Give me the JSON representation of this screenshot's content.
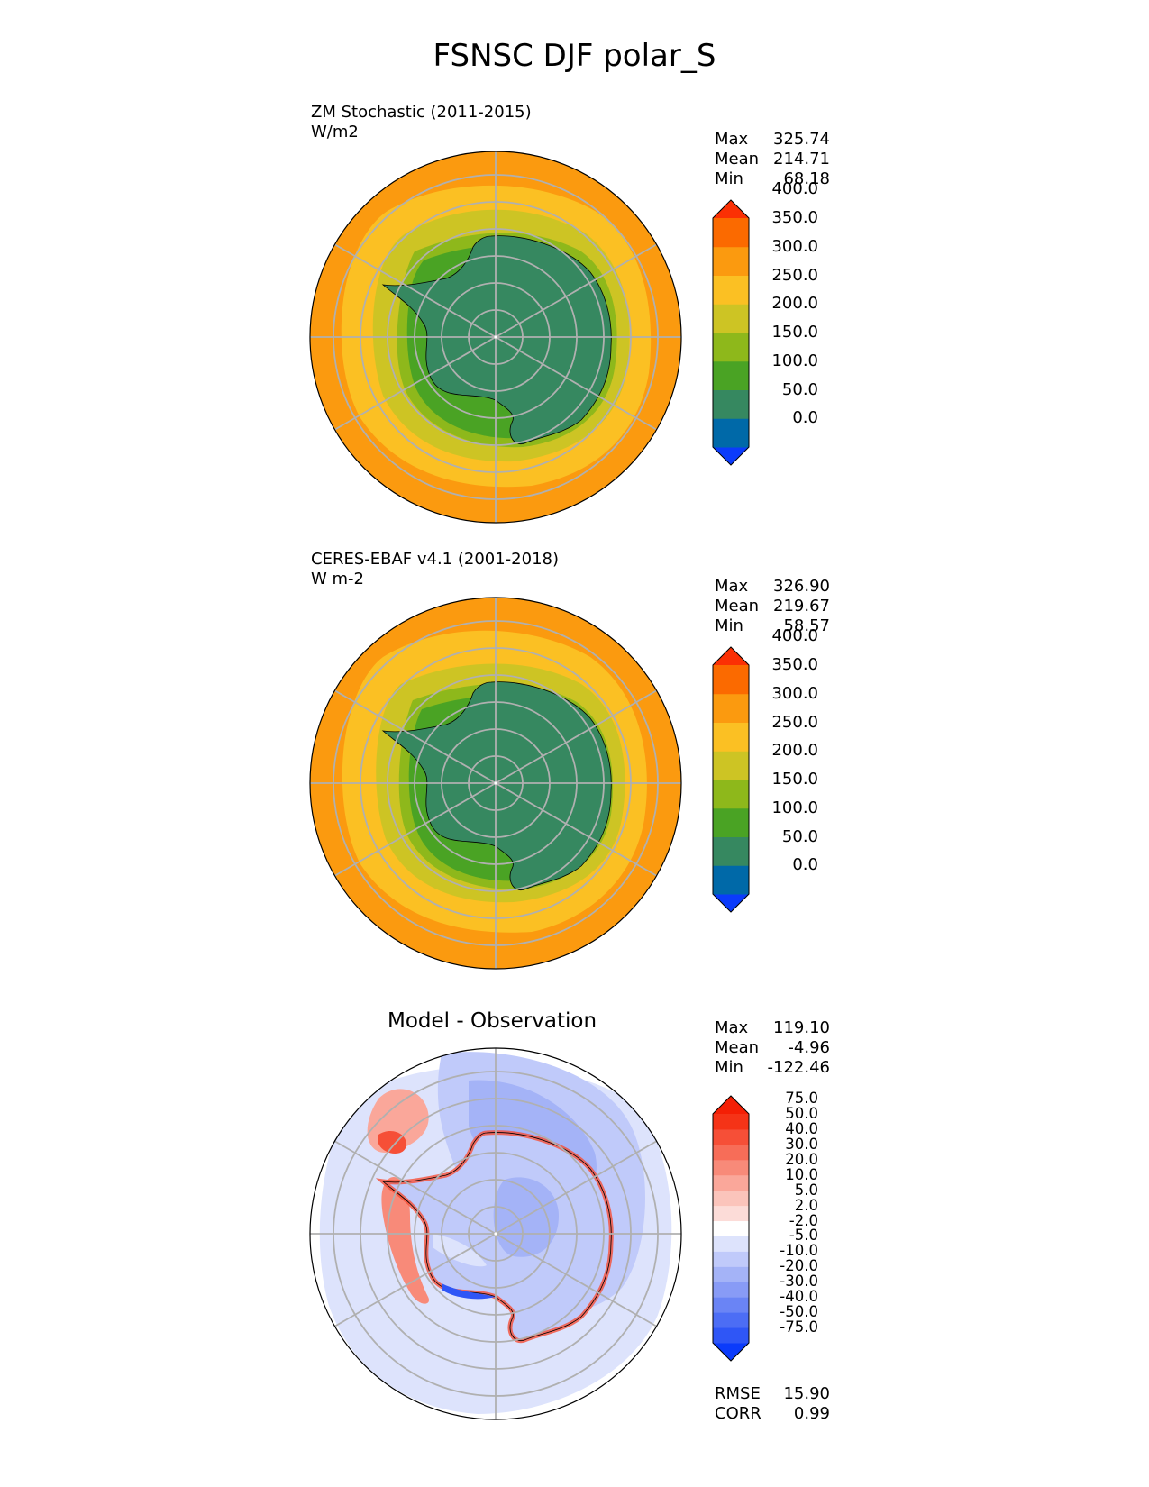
{
  "title": "FSNSC DJF polar_S",
  "panels": [
    {
      "title_line1": "ZM Stochastic (2011-2015)",
      "title_line2": "W/m2",
      "stats": {
        "max_label": "Max",
        "max": "325.74",
        "mean_label": "Mean",
        "mean": "214.71",
        "min_label": "Min",
        "min": "68.18"
      },
      "colorbar": {
        "labels": [
          "400.0",
          "350.0",
          "300.0",
          "250.0",
          "200.0",
          "150.0",
          "100.0",
          "50.0",
          "0.0"
        ],
        "colors": [
          "#0b3bfb",
          "#0069a8",
          "#368860",
          "#4aa324",
          "#8eb81b",
          "#cdc424",
          "#fbc023",
          "#fb9a0f",
          "#fb6a00",
          "#fb3004"
        ]
      }
    },
    {
      "title_line1": "CERES-EBAF v4.1 (2001-2018)",
      "title_line2": "W m-2",
      "stats": {
        "max_label": "Max",
        "max": "326.90",
        "mean_label": "Mean",
        "mean": "219.67",
        "min_label": "Min",
        "min": "58.57"
      },
      "colorbar": {
        "labels": [
          "400.0",
          "350.0",
          "300.0",
          "250.0",
          "200.0",
          "150.0",
          "100.0",
          "50.0",
          "0.0"
        ],
        "colors": [
          "#0b3bfb",
          "#0069a8",
          "#368860",
          "#4aa324",
          "#8eb81b",
          "#cdc424",
          "#fbc023",
          "#fb9a0f",
          "#fb6a00",
          "#fb3004"
        ]
      }
    },
    {
      "title": "Model - Observation",
      "stats": {
        "max_label": "Max",
        "max": "119.10",
        "mean_label": "Mean",
        "mean": "-4.96",
        "min_label": "Min",
        "min": "-122.46"
      },
      "colorbar": {
        "labels": [
          "75.0",
          "50.0",
          "40.0",
          "30.0",
          "20.0",
          "10.0",
          "5.0",
          "2.0",
          "-2.0",
          "-5.0",
          "-10.0",
          "-20.0",
          "-30.0",
          "-40.0",
          "-50.0",
          "-75.0"
        ],
        "colors": [
          "#0b3bfb",
          "#2f56f6",
          "#4c6df5",
          "#6a84f5",
          "#889bf6",
          "#a4b3f7",
          "#c0cafa",
          "#dde3fc",
          "#ffffff",
          "#fcdcd8",
          "#fbc4bb",
          "#faa79a",
          "#f88a79",
          "#f76d58",
          "#f64f37",
          "#f53317",
          "#f41f05"
        ]
      },
      "rmse_label": "RMSE",
      "rmse": "15.90",
      "corr_label": "CORR",
      "corr": "0.99"
    }
  ],
  "colors": {
    "ocean_far": "#fb9a0f",
    "ocean_mid": "#fbc023",
    "sea_ice": "#cdc424",
    "ice_edge": "#8eb81b",
    "shelf": "#4aa324",
    "continent": "#368860",
    "grid": "#b0b0b0"
  }
}
